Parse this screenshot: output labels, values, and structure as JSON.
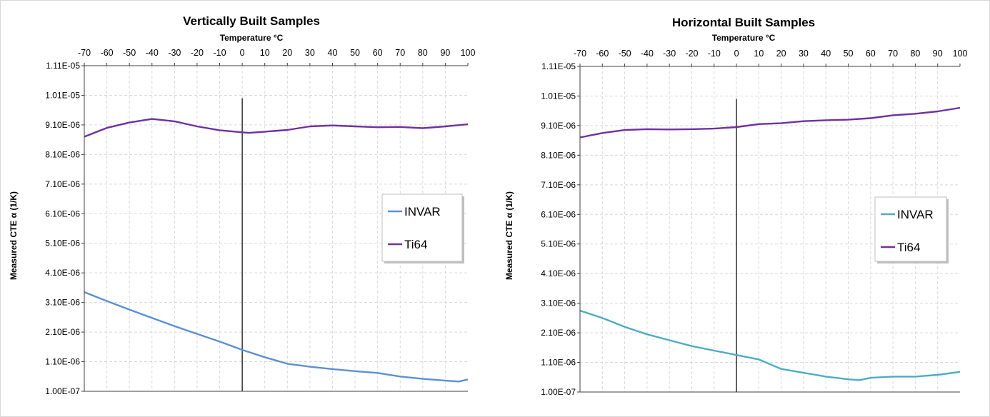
{
  "chart_data": [
    {
      "type": "line",
      "title": "Vertically Built Samples",
      "xlabel": "Temperature °C",
      "ylabel": "Measured CTE α (1/K)",
      "xlim": [
        -70,
        100
      ],
      "ylim": [
        1e-07,
        1.11e-05
      ],
      "x_ticks": [
        -70,
        -60,
        -50,
        -40,
        -30,
        -20,
        -10,
        0,
        10,
        20,
        30,
        40,
        50,
        60,
        70,
        80,
        90,
        100
      ],
      "y_ticks": [
        1e-07,
        1.1e-06,
        2.1e-06,
        3.1e-06,
        4.1e-06,
        5.1e-06,
        6.1e-06,
        7.1e-06,
        8.1e-06,
        9.1e-06,
        1.01e-05,
        1.11e-05
      ],
      "y_tick_labels": [
        "1.00E-07",
        "1.10E-06",
        "2.10E-06",
        "3.10E-06",
        "4.10E-06",
        "5.10E-06",
        "6.10E-06",
        "7.10E-06",
        "8.10E-06",
        "9.10E-06",
        "1.01E-05",
        "1.11E-05"
      ],
      "x_axis_position": "top",
      "grid": true,
      "legend_position": "right",
      "series": [
        {
          "name": "INVAR",
          "color": "#5b8fd8",
          "x": [
            -70,
            -60,
            -50,
            -40,
            -30,
            -20,
            -10,
            0,
            10,
            20,
            30,
            40,
            50,
            60,
            70,
            80,
            90,
            96,
            100
          ],
          "y": [
            3.45e-06,
            3.15e-06,
            2.86e-06,
            2.58e-06,
            2.3e-06,
            2.04e-06,
            1.78e-06,
            1.5e-06,
            1.25e-06,
            1.03e-06,
            9.3e-07,
            8.5e-07,
            7.8e-07,
            7.2e-07,
            6e-07,
            5.2e-07,
            4.6e-07,
            4.3e-07,
            5e-07
          ]
        },
        {
          "name": "Ti64",
          "color": "#7030a0",
          "x": [
            -70,
            -60,
            -50,
            -40,
            -30,
            -20,
            -10,
            0,
            3,
            10,
            20,
            30,
            40,
            50,
            60,
            70,
            80,
            90,
            100
          ],
          "y": [
            8.7e-06,
            9e-06,
            9.18e-06,
            9.3e-06,
            9.22e-06,
            9.05e-06,
            8.92e-06,
            8.85e-06,
            8.83e-06,
            8.87e-06,
            8.93e-06,
            9.05e-06,
            9.08e-06,
            9.05e-06,
            9.02e-06,
            9.03e-06,
            8.99e-06,
            9.05e-06,
            9.12e-06
          ]
        }
      ]
    },
    {
      "type": "line",
      "title": "Horizontal Built Samples",
      "xlabel": "Temperature °C",
      "ylabel": "Measured CTE α (1/K)",
      "xlim": [
        -70,
        100
      ],
      "ylim": [
        1e-07,
        1.11e-05
      ],
      "x_ticks": [
        -70,
        -60,
        -50,
        -40,
        -30,
        -20,
        -10,
        0,
        10,
        20,
        30,
        40,
        50,
        60,
        70,
        80,
        90,
        100
      ],
      "y_ticks": [
        1e-07,
        1.1e-06,
        2.1e-06,
        3.1e-06,
        4.1e-06,
        5.1e-06,
        6.1e-06,
        7.1e-06,
        8.1e-06,
        9.1e-06,
        1.01e-05,
        1.11e-05
      ],
      "y_tick_labels": [
        "1.00E-07",
        "1.10E-06",
        "2.10E-06",
        "3.10E-06",
        "4.10E-06",
        "5.10E-06",
        "6.10E-06",
        "7.10E-06",
        "8.10E-06",
        "9.10E-06",
        "1.01E-05",
        "1.11E-05"
      ],
      "x_axis_position": "top",
      "grid": true,
      "legend_position": "right",
      "series": [
        {
          "name": "INVAR",
          "color": "#4bacc6",
          "x": [
            -70,
            -60,
            -50,
            -40,
            -30,
            -20,
            -10,
            0,
            10,
            20,
            30,
            40,
            50,
            55,
            60,
            70,
            80,
            90,
            100
          ],
          "y": [
            2.85e-06,
            2.6e-06,
            2.3e-06,
            2.05e-06,
            1.85e-06,
            1.65e-06,
            1.5e-06,
            1.35e-06,
            1.2e-06,
            8.8e-07,
            7.5e-07,
            6.2e-07,
            5.3e-07,
            5e-07,
            5.8e-07,
            6.2e-07,
            6.2e-07,
            6.8e-07,
            7.8e-07
          ]
        },
        {
          "name": "Ti64",
          "color": "#7030a0",
          "x": [
            -70,
            -60,
            -50,
            -40,
            -30,
            -20,
            -10,
            0,
            10,
            20,
            30,
            40,
            50,
            60,
            70,
            80,
            90,
            100
          ],
          "y": [
            8.7e-06,
            8.85e-06,
            8.95e-06,
            8.98e-06,
            8.97e-06,
            8.98e-06,
            9e-06,
            9.05e-06,
            9.15e-06,
            9.18e-06,
            9.25e-06,
            9.28e-06,
            9.3e-06,
            9.35e-06,
            9.45e-06,
            9.5e-06,
            9.58e-06,
            9.7e-06
          ]
        }
      ]
    }
  ]
}
